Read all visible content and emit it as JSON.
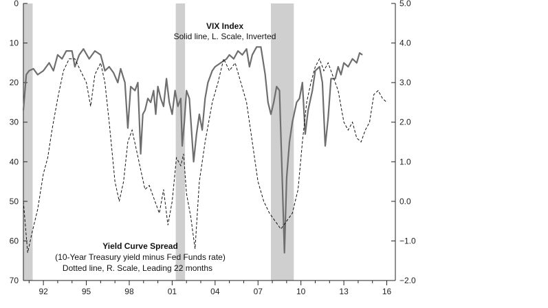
{
  "chart_data": {
    "type": "line",
    "left_axis": {
      "range": [
        0,
        70
      ],
      "inverted": true,
      "ticks": [
        "0",
        "10",
        "20",
        "30",
        "40",
        "50",
        "60",
        "70"
      ]
    },
    "right_axis": {
      "range": [
        -2.0,
        5.0
      ],
      "ticks": [
        "5.0",
        "4.0",
        "3.0",
        "2.0",
        "1.0",
        "0.0",
        "−1.0",
        "−2.0"
      ]
    },
    "x_axis": {
      "range": [
        1990.6,
        2016.6
      ],
      "ticks": [
        "92",
        "95",
        "98",
        "01",
        "04",
        "07",
        "10",
        "13",
        "16"
      ],
      "tick_years": [
        1992,
        1995,
        1998,
        2001,
        2004,
        2007,
        2010,
        2013,
        2016
      ]
    },
    "recessions": [
      [
        1990.6,
        1991.25
      ],
      [
        2001.25,
        2001.9
      ],
      [
        2007.9,
        2009.5
      ]
    ],
    "annotations": {
      "vix_title": "VIX Index",
      "vix_sub": "Solid line, L. Scale, Inverted",
      "spread_title": "Yield Curve Spread",
      "spread_sub1": "(10-Year Treasury yield minus Fed Funds rate)",
      "spread_sub2": "Dotted line, R. Scale, Leading 22 months"
    },
    "series": [
      {
        "style": "solid",
        "axis": "left",
        "points": [
          [
            1990.6,
            27
          ],
          [
            1990.8,
            18
          ],
          [
            1991.0,
            17
          ],
          [
            1991.3,
            16.5
          ],
          [
            1991.6,
            18
          ],
          [
            1992.0,
            17
          ],
          [
            1992.4,
            15
          ],
          [
            1992.7,
            17
          ],
          [
            1993.0,
            13
          ],
          [
            1993.3,
            14
          ],
          [
            1993.6,
            12
          ],
          [
            1994.0,
            12
          ],
          [
            1994.2,
            16
          ],
          [
            1994.5,
            13
          ],
          [
            1994.8,
            11.5
          ],
          [
            1995.2,
            14
          ],
          [
            1995.6,
            12
          ],
          [
            1996.0,
            13
          ],
          [
            1996.3,
            17
          ],
          [
            1996.6,
            16
          ],
          [
            1996.9,
            17.5
          ],
          [
            1997.2,
            20
          ],
          [
            1997.4,
            16.5
          ],
          [
            1997.7,
            20
          ],
          [
            1997.9,
            31.5
          ],
          [
            1998.1,
            21
          ],
          [
            1998.4,
            22
          ],
          [
            1998.6,
            20
          ],
          [
            1998.8,
            38
          ],
          [
            1998.95,
            28
          ],
          [
            1999.1,
            27
          ],
          [
            1999.3,
            24
          ],
          [
            1999.5,
            25
          ],
          [
            1999.7,
            22
          ],
          [
            1999.85,
            28
          ],
          [
            2000.0,
            21
          ],
          [
            2000.2,
            24
          ],
          [
            2000.4,
            26
          ],
          [
            2000.6,
            19
          ],
          [
            2000.8,
            25
          ],
          [
            2001.0,
            28
          ],
          [
            2001.2,
            22
          ],
          [
            2001.4,
            26
          ],
          [
            2001.6,
            24
          ],
          [
            2001.7,
            36
          ],
          [
            2001.85,
            30
          ],
          [
            2002.0,
            22
          ],
          [
            2002.2,
            24
          ],
          [
            2002.5,
            40
          ],
          [
            2002.7,
            33
          ],
          [
            2002.9,
            28
          ],
          [
            2003.1,
            32
          ],
          [
            2003.3,
            24
          ],
          [
            2003.5,
            20
          ],
          [
            2003.8,
            17
          ],
          [
            2004.0,
            16
          ],
          [
            2004.4,
            15
          ],
          [
            2004.8,
            14
          ],
          [
            2005.0,
            13
          ],
          [
            2005.3,
            14
          ],
          [
            2005.6,
            12
          ],
          [
            2005.9,
            13
          ],
          [
            2006.2,
            11.5
          ],
          [
            2006.4,
            16
          ],
          [
            2006.6,
            13
          ],
          [
            2006.9,
            11
          ],
          [
            2007.2,
            11
          ],
          [
            2007.5,
            18
          ],
          [
            2007.7,
            25
          ],
          [
            2007.9,
            28
          ],
          [
            2008.1,
            25
          ],
          [
            2008.3,
            21
          ],
          [
            2008.5,
            22
          ],
          [
            2008.7,
            45
          ],
          [
            2008.85,
            63
          ],
          [
            2009.0,
            44
          ],
          [
            2009.2,
            35
          ],
          [
            2009.4,
            30
          ],
          [
            2009.7,
            25
          ],
          [
            2009.9,
            24
          ],
          [
            2010.1,
            20
          ],
          [
            2010.3,
            33
          ],
          [
            2010.5,
            27
          ],
          [
            2010.8,
            22
          ],
          [
            2011.0,
            17
          ],
          [
            2011.3,
            16
          ],
          [
            2011.5,
            20
          ],
          [
            2011.7,
            36
          ],
          [
            2011.9,
            29
          ],
          [
            2012.1,
            19
          ],
          [
            2012.4,
            19
          ],
          [
            2012.6,
            16
          ],
          [
            2012.8,
            18
          ],
          [
            2013.0,
            15
          ],
          [
            2013.3,
            16
          ],
          [
            2013.6,
            14
          ],
          [
            2013.9,
            15
          ],
          [
            2014.1,
            12.5
          ],
          [
            2014.3,
            13
          ]
        ]
      },
      {
        "style": "dashed",
        "axis": "right",
        "points": [
          [
            1990.6,
            0.0
          ],
          [
            1990.9,
            -1.3
          ],
          [
            1991.2,
            -0.8
          ],
          [
            1991.6,
            -0.2
          ],
          [
            1992.0,
            0.7
          ],
          [
            1992.3,
            1.1
          ],
          [
            1992.6,
            1.8
          ],
          [
            1993.0,
            2.6
          ],
          [
            1993.4,
            3.3
          ],
          [
            1993.8,
            3.6
          ],
          [
            1994.2,
            3.6
          ],
          [
            1994.6,
            3.3
          ],
          [
            1995.0,
            3.0
          ],
          [
            1995.3,
            2.4
          ],
          [
            1995.6,
            3.2
          ],
          [
            1996.0,
            3.5
          ],
          [
            1996.3,
            3.0
          ],
          [
            1996.6,
            2.0
          ],
          [
            1997.0,
            0.5
          ],
          [
            1997.3,
            0.0
          ],
          [
            1997.6,
            0.5
          ],
          [
            1997.9,
            1.5
          ],
          [
            1998.2,
            1.8
          ],
          [
            1998.5,
            1.3
          ],
          [
            1998.8,
            0.8
          ],
          [
            1999.1,
            0.3
          ],
          [
            1999.4,
            0.4
          ],
          [
            1999.8,
            0.0
          ],
          [
            2000.1,
            -0.3
          ],
          [
            2000.4,
            0.3
          ],
          [
            2000.7,
            -0.6
          ],
          [
            2001.0,
            0.0
          ],
          [
            2001.3,
            1.1
          ],
          [
            2001.6,
            0.9
          ],
          [
            2001.8,
            1.2
          ],
          [
            2002.0,
            0.2
          ],
          [
            2002.3,
            -0.4
          ],
          [
            2002.6,
            -1.2
          ],
          [
            2002.9,
            0.5
          ],
          [
            2003.3,
            1.5
          ],
          [
            2003.8,
            2.5
          ],
          [
            2004.2,
            3.0
          ],
          [
            2004.6,
            3.6
          ],
          [
            2005.0,
            3.3
          ],
          [
            2005.4,
            3.5
          ],
          [
            2005.8,
            3.0
          ],
          [
            2006.2,
            2.5
          ],
          [
            2006.6,
            1.5
          ],
          [
            2007.0,
            0.5
          ],
          [
            2007.4,
            0.0
          ],
          [
            2007.8,
            -0.3
          ],
          [
            2008.2,
            -0.5
          ],
          [
            2008.6,
            -0.7
          ],
          [
            2009.0,
            -0.5
          ],
          [
            2009.4,
            -0.3
          ],
          [
            2009.8,
            0.3
          ],
          [
            2010.1,
            1.5
          ],
          [
            2010.4,
            2.5
          ],
          [
            2010.7,
            3.0
          ],
          [
            2011.0,
            3.4
          ],
          [
            2011.3,
            3.6
          ],
          [
            2011.6,
            3.3
          ],
          [
            2011.9,
            3.5
          ],
          [
            2012.2,
            3.2
          ],
          [
            2012.6,
            2.8
          ],
          [
            2013.0,
            2.0
          ],
          [
            2013.3,
            1.8
          ],
          [
            2013.6,
            2.0
          ],
          [
            2013.9,
            1.6
          ],
          [
            2014.2,
            1.5
          ],
          [
            2014.5,
            1.8
          ],
          [
            2014.8,
            2.0
          ],
          [
            2015.1,
            2.7
          ],
          [
            2015.4,
            2.8
          ],
          [
            2015.7,
            2.6
          ],
          [
            2016.0,
            2.5
          ]
        ]
      }
    ]
  }
}
